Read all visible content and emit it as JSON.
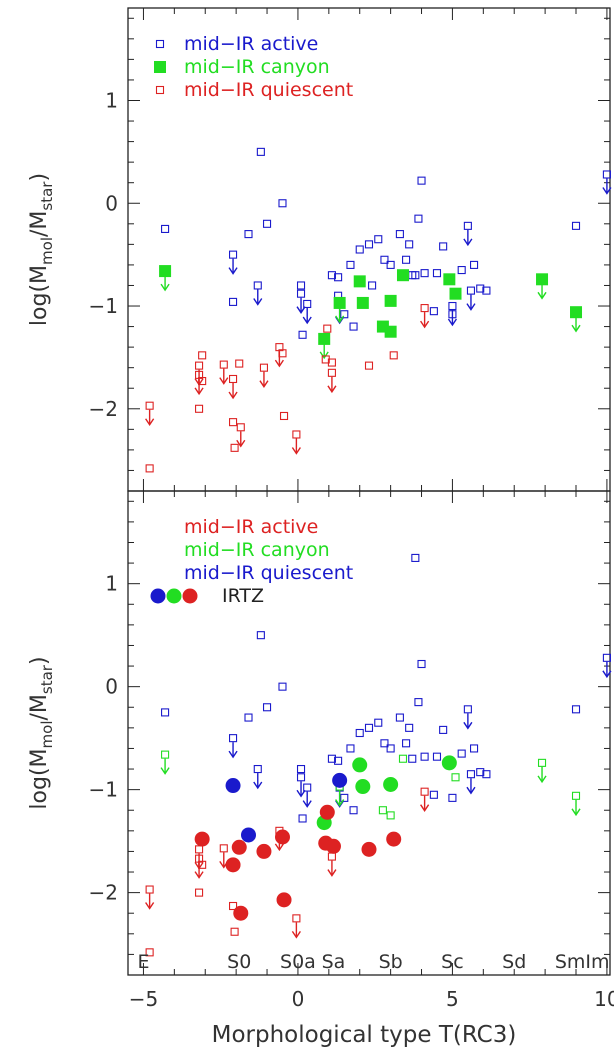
{
  "chart_data": {
    "type": "scatter",
    "xlabel": "Morphological type T(RC3)",
    "xlim": [
      -5.5,
      10.1
    ],
    "x_ticks": [
      "−5",
      "0",
      "5",
      "10"
    ],
    "x_tick_values": [
      -5,
      0,
      5,
      10
    ],
    "morph_labels": [
      {
        "text": "E",
        "x": -5.0
      },
      {
        "text": "S0",
        "x": -1.9
      },
      {
        "text": "S0a",
        "x": 0.0
      },
      {
        "text": "Sa",
        "x": 1.15
      },
      {
        "text": "Sb",
        "x": 3.0
      },
      {
        "text": "Sc",
        "x": 5.0
      },
      {
        "text": "Sd",
        "x": 7.0
      },
      {
        "text": "SmIm",
        "x": 9.2
      }
    ],
    "colors": {
      "active": "#1a1acc",
      "canyon": "#22dd22",
      "quiescent": "#dd2222"
    },
    "panels": [
      {
        "ylabel_base": "log(M",
        "ylabel_sub1": "mol",
        "ylabel_mid": "/M",
        "ylabel_sub2": "star",
        "ylabel_end": ")",
        "ylim": [
          -2.8,
          1.9
        ],
        "y_ticks": [
          "−2",
          "−1",
          "0",
          "1"
        ],
        "y_tick_values": [
          -2,
          -1,
          0,
          1
        ],
        "legend": [
          {
            "text": "mid−IR active",
            "color": "#1a1acc",
            "marker": "open-square"
          },
          {
            "text": "mid−IR canyon",
            "color": "#22dd22",
            "marker": "filled-square"
          },
          {
            "text": "mid−IR quiescent",
            "color": "#dd2222",
            "marker": "open-square"
          }
        ],
        "series": [
          {
            "key": "active",
            "marker": "open-square",
            "color": "#1a1acc",
            "points": [
              {
                "x": -4.3,
                "y": -0.25
              },
              {
                "x": -2.1,
                "y": -0.5,
                "upper": true
              },
              {
                "x": -2.1,
                "y": -0.96
              },
              {
                "x": -1.6,
                "y": -0.3
              },
              {
                "x": -1.3,
                "y": -0.8,
                "upper": true
              },
              {
                "x": -1.2,
                "y": 0.5
              },
              {
                "x": -1.0,
                "y": -0.2
              },
              {
                "x": -0.5,
                "y": 0.0
              },
              {
                "x": 0.1,
                "y": -0.8
              },
              {
                "x": 0.1,
                "y": -0.88,
                "upper": true
              },
              {
                "x": 0.15,
                "y": -1.28
              },
              {
                "x": 0.3,
                "y": -0.98,
                "upper": true
              },
              {
                "x": 1.1,
                "y": -0.7
              },
              {
                "x": 1.3,
                "y": -0.72
              },
              {
                "x": 1.3,
                "y": -0.9
              },
              {
                "x": 1.35,
                "y": -0.98,
                "upper": true
              },
              {
                "x": 1.5,
                "y": -1.08
              },
              {
                "x": 1.7,
                "y": -0.6
              },
              {
                "x": 1.8,
                "y": -1.2
              },
              {
                "x": 2.0,
                "y": -0.45
              },
              {
                "x": 2.3,
                "y": -0.4
              },
              {
                "x": 2.4,
                "y": -0.8
              },
              {
                "x": 2.6,
                "y": -0.35
              },
              {
                "x": 2.8,
                "y": -0.55
              },
              {
                "x": 3.0,
                "y": -0.6
              },
              {
                "x": 3.3,
                "y": -0.3
              },
              {
                "x": 3.5,
                "y": -0.55
              },
              {
                "x": 3.6,
                "y": -0.4
              },
              {
                "x": 3.7,
                "y": -0.7
              },
              {
                "x": 3.8,
                "y": -0.7
              },
              {
                "x": 3.9,
                "y": -0.15
              },
              {
                "x": 4.0,
                "y": 0.22
              },
              {
                "x": 4.1,
                "y": -0.68
              },
              {
                "x": 4.4,
                "y": -1.05
              },
              {
                "x": 4.5,
                "y": -0.68
              },
              {
                "x": 4.7,
                "y": -0.42
              },
              {
                "x": 5.0,
                "y": -1.08
              },
              {
                "x": 5.0,
                "y": -1.0,
                "upper": true
              },
              {
                "x": 5.3,
                "y": -0.65
              },
              {
                "x": 5.5,
                "y": -0.22,
                "upper": true
              },
              {
                "x": 5.6,
                "y": -0.85,
                "upper": true
              },
              {
                "x": 5.7,
                "y": -0.6
              },
              {
                "x": 5.9,
                "y": -0.83
              },
              {
                "x": 6.1,
                "y": -0.85
              },
              {
                "x": 9.0,
                "y": -0.22
              },
              {
                "x": 10.0,
                "y": 0.28,
                "upper": true
              }
            ]
          },
          {
            "key": "canyon",
            "marker": "filled-square",
            "color": "#22dd22",
            "points": [
              {
                "x": -4.3,
                "y": -0.66,
                "upper": true
              },
              {
                "x": 0.85,
                "y": -1.32,
                "upper": true
              },
              {
                "x": 1.35,
                "y": -0.97,
                "upper": true
              },
              {
                "x": 2.0,
                "y": -0.76
              },
              {
                "x": 2.1,
                "y": -0.97
              },
              {
                "x": 2.75,
                "y": -1.2
              },
              {
                "x": 3.0,
                "y": -1.25
              },
              {
                "x": 3.0,
                "y": -0.95
              },
              {
                "x": 3.4,
                "y": -0.7
              },
              {
                "x": 4.9,
                "y": -0.74
              },
              {
                "x": 5.1,
                "y": -0.88
              },
              {
                "x": 7.9,
                "y": -0.74,
                "upper": true
              },
              {
                "x": 9.0,
                "y": -1.06,
                "upper": true
              }
            ]
          },
          {
            "key": "quiescent",
            "marker": "open-square",
            "color": "#dd2222",
            "points": [
              {
                "x": -4.8,
                "y": -1.97,
                "upper": true
              },
              {
                "x": -4.8,
                "y": -2.58
              },
              {
                "x": -3.1,
                "y": -1.48
              },
              {
                "x": -3.2,
                "y": -1.58,
                "upper": true
              },
              {
                "x": -3.2,
                "y": -1.67,
                "upper": true
              },
              {
                "x": -3.1,
                "y": -1.73
              },
              {
                "x": -3.2,
                "y": -2.0
              },
              {
                "x": -2.4,
                "y": -1.57,
                "upper": true
              },
              {
                "x": -2.1,
                "y": -1.71,
                "upper": true
              },
              {
                "x": -2.1,
                "y": -2.13
              },
              {
                "x": -1.9,
                "y": -1.56
              },
              {
                "x": -2.05,
                "y": -2.38
              },
              {
                "x": -1.85,
                "y": -2.18,
                "upper": true
              },
              {
                "x": -1.1,
                "y": -1.6,
                "upper": true
              },
              {
                "x": -0.6,
                "y": -1.4,
                "upper": true
              },
              {
                "x": -0.5,
                "y": -1.46
              },
              {
                "x": -0.45,
                "y": -2.07
              },
              {
                "x": -0.05,
                "y": -2.25,
                "upper": true
              },
              {
                "x": 0.9,
                "y": -1.52
              },
              {
                "x": 0.95,
                "y": -1.22
              },
              {
                "x": 1.1,
                "y": -1.55
              },
              {
                "x": 1.1,
                "y": -1.65,
                "upper": true
              },
              {
                "x": 2.3,
                "y": -1.58
              },
              {
                "x": 3.1,
                "y": -1.48
              },
              {
                "x": 4.1,
                "y": -1.02,
                "upper": true
              }
            ]
          }
        ]
      },
      {
        "ylabel_base": "log(M",
        "ylabel_sub1": "mol",
        "ylabel_mid": "/M",
        "ylabel_sub2": "star",
        "ylabel_end": ")",
        "ylim": [
          -2.8,
          1.9
        ],
        "y_ticks": [
          "−2",
          "−1",
          "0",
          "1"
        ],
        "y_tick_values": [
          -2,
          -1,
          0,
          1
        ],
        "legend": [
          {
            "text": "mid−IR active",
            "color": "#dd2222",
            "marker": "none"
          },
          {
            "text": "mid−IR canyon",
            "color": "#22dd22",
            "marker": "none"
          },
          {
            "text": "mid−IR quiescent",
            "color": "#1a1acc",
            "marker": "none"
          },
          {
            "text": "IRTZ",
            "color": "#222222",
            "marker": "three-circles"
          }
        ],
        "series": [
          {
            "key": "quiescent-host",
            "marker": "open-square",
            "color": "#1a1acc",
            "points": [
              {
                "x": -4.3,
                "y": -0.25
              },
              {
                "x": -2.1,
                "y": -0.5,
                "upper": true
              },
              {
                "x": -1.6,
                "y": -0.3
              },
              {
                "x": -1.3,
                "y": -0.8,
                "upper": true
              },
              {
                "x": -1.2,
                "y": 0.5
              },
              {
                "x": -1.0,
                "y": -0.2
              },
              {
                "x": -0.5,
                "y": 0.0
              },
              {
                "x": 0.1,
                "y": -0.8
              },
              {
                "x": 0.1,
                "y": -0.88,
                "upper": true
              },
              {
                "x": 0.15,
                "y": -1.28
              },
              {
                "x": 0.3,
                "y": -0.98,
                "upper": true
              },
              {
                "x": 1.1,
                "y": -0.7
              },
              {
                "x": 1.3,
                "y": -0.72
              },
              {
                "x": 1.35,
                "y": -0.98,
                "upper": true
              },
              {
                "x": 1.5,
                "y": -1.08
              },
              {
                "x": 1.7,
                "y": -0.6
              },
              {
                "x": 1.8,
                "y": -1.2
              },
              {
                "x": 2.0,
                "y": -0.45
              },
              {
                "x": 2.3,
                "y": -0.4
              },
              {
                "x": 2.6,
                "y": -0.35
              },
              {
                "x": 2.8,
                "y": -0.55
              },
              {
                "x": 3.0,
                "y": -0.6
              },
              {
                "x": 3.3,
                "y": -0.3
              },
              {
                "x": 3.5,
                "y": -0.55
              },
              {
                "x": 3.6,
                "y": -0.4
              },
              {
                "x": 3.7,
                "y": -0.7
              },
              {
                "x": 3.8,
                "y": 1.25
              },
              {
                "x": 3.9,
                "y": -0.15
              },
              {
                "x": 4.0,
                "y": 0.22
              },
              {
                "x": 4.1,
                "y": -0.68
              },
              {
                "x": 4.4,
                "y": -1.05
              },
              {
                "x": 4.5,
                "y": -0.68
              },
              {
                "x": 4.7,
                "y": -0.42
              },
              {
                "x": 5.0,
                "y": -1.08
              },
              {
                "x": 5.3,
                "y": -0.65
              },
              {
                "x": 5.5,
                "y": -0.22,
                "upper": true
              },
              {
                "x": 5.6,
                "y": -0.85,
                "upper": true
              },
              {
                "x": 5.7,
                "y": -0.6
              },
              {
                "x": 5.9,
                "y": -0.83
              },
              {
                "x": 6.1,
                "y": -0.85
              },
              {
                "x": 9.0,
                "y": -0.22
              },
              {
                "x": 10.0,
                "y": 0.28,
                "upper": true
              }
            ]
          },
          {
            "key": "canyon-host",
            "marker": "open-square",
            "color": "#22dd22",
            "points": [
              {
                "x": -4.3,
                "y": -0.66,
                "upper": true
              },
              {
                "x": 1.35,
                "y": -0.97,
                "upper": true
              },
              {
                "x": 2.75,
                "y": -1.2
              },
              {
                "x": 3.0,
                "y": -1.25
              },
              {
                "x": 3.4,
                "y": -0.7
              },
              {
                "x": 5.1,
                "y": -0.88
              },
              {
                "x": 7.9,
                "y": -0.74,
                "upper": true
              },
              {
                "x": 9.0,
                "y": -1.06,
                "upper": true
              }
            ]
          },
          {
            "key": "active-host",
            "marker": "open-square",
            "color": "#dd2222",
            "points": [
              {
                "x": -4.8,
                "y": -1.97,
                "upper": true
              },
              {
                "x": -4.8,
                "y": -2.58
              },
              {
                "x": -3.2,
                "y": -1.58,
                "upper": true
              },
              {
                "x": -3.2,
                "y": -1.67,
                "upper": true
              },
              {
                "x": -3.1,
                "y": -1.73
              },
              {
                "x": -3.2,
                "y": -2.0
              },
              {
                "x": -2.4,
                "y": -1.57,
                "upper": true
              },
              {
                "x": -2.1,
                "y": -2.13
              },
              {
                "x": -2.05,
                "y": -2.38
              },
              {
                "x": -0.6,
                "y": -1.4,
                "upper": true
              },
              {
                "x": -0.05,
                "y": -2.25,
                "upper": true
              },
              {
                "x": 1.1,
                "y": -1.65,
                "upper": true
              },
              {
                "x": 4.1,
                "y": -1.02,
                "upper": true
              }
            ]
          },
          {
            "key": "irtz-blue",
            "marker": "filled-circle",
            "color": "#1a1acc",
            "points": [
              {
                "x": -2.1,
                "y": -0.96
              },
              {
                "x": -1.6,
                "y": -1.44
              },
              {
                "x": 1.35,
                "y": -0.91
              }
            ]
          },
          {
            "key": "irtz-green",
            "marker": "filled-circle",
            "color": "#22dd22",
            "points": [
              {
                "x": 0.85,
                "y": -1.32
              },
              {
                "x": 2.0,
                "y": -0.76
              },
              {
                "x": 2.1,
                "y": -0.97
              },
              {
                "x": 3.0,
                "y": -0.95
              },
              {
                "x": 4.9,
                "y": -0.74
              }
            ]
          },
          {
            "key": "irtz-red",
            "marker": "filled-circle",
            "color": "#dd2222",
            "points": [
              {
                "x": -3.1,
                "y": -1.48
              },
              {
                "x": -1.9,
                "y": -1.56
              },
              {
                "x": -2.1,
                "y": -1.73
              },
              {
                "x": -1.85,
                "y": -2.2
              },
              {
                "x": -1.1,
                "y": -1.6
              },
              {
                "x": -0.5,
                "y": -1.46
              },
              {
                "x": -0.45,
                "y": -2.07
              },
              {
                "x": 0.9,
                "y": -1.52
              },
              {
                "x": 0.95,
                "y": -1.22
              },
              {
                "x": 1.15,
                "y": -1.55
              },
              {
                "x": 2.3,
                "y": -1.58
              },
              {
                "x": 3.1,
                "y": -1.48
              }
            ]
          }
        ]
      }
    ]
  }
}
